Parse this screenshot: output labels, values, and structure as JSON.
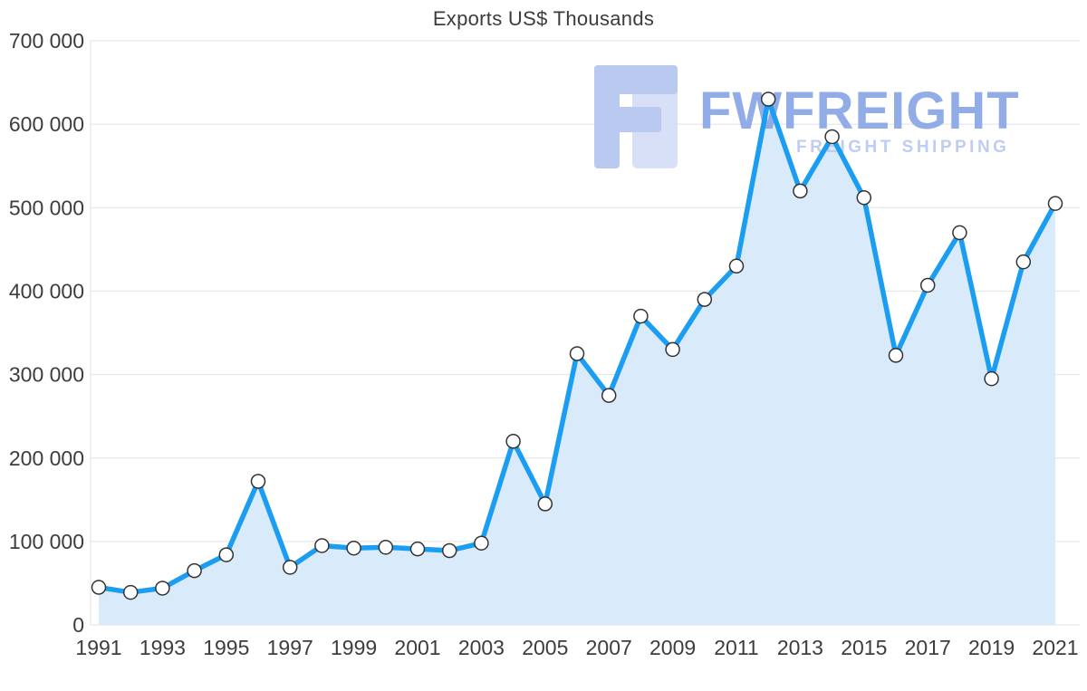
{
  "title": "Exports US$ Thousands",
  "watermark": {
    "brand": "FWFREIGHT",
    "subtitle": "FREIGHT SHIPPING",
    "brand_color": "#8ca8e6",
    "subtitle_color": "#bccbf2",
    "logo_color": "#b7c7f0",
    "logo_color_light": "#d5dff7"
  },
  "chart_data": {
    "type": "line",
    "title": "Exports US$ Thousands",
    "xlabel": "",
    "ylabel": "",
    "x": [
      1991,
      1992,
      1993,
      1994,
      1995,
      1996,
      1997,
      1998,
      1999,
      2000,
      2001,
      2002,
      2003,
      2004,
      2005,
      2006,
      2007,
      2008,
      2009,
      2010,
      2011,
      2012,
      2013,
      2014,
      2015,
      2016,
      2017,
      2018,
      2019,
      2020,
      2021
    ],
    "values": [
      45000,
      39000,
      44000,
      65000,
      84000,
      172000,
      69000,
      95000,
      92000,
      93000,
      91000,
      89000,
      98000,
      220000,
      145000,
      325000,
      275000,
      370000,
      330000,
      390000,
      430000,
      630000,
      520000,
      585000,
      512000,
      323000,
      407000,
      470000,
      295000,
      435000,
      505000
    ],
    "ylim": [
      0,
      700000
    ],
    "yticks": [
      0,
      100000,
      200000,
      300000,
      400000,
      500000,
      600000,
      700000
    ],
    "ytick_labels": [
      "0",
      "100 000",
      "200 000",
      "300 000",
      "400 000",
      "500 000",
      "600 000",
      "700 000"
    ],
    "xtick_labels": [
      "1991",
      "1993",
      "1995",
      "1997",
      "1999",
      "2001",
      "2003",
      "2005",
      "2007",
      "2009",
      "2011",
      "2013",
      "2015",
      "2017",
      "2019",
      "2021"
    ],
    "grid": true,
    "legend": "none",
    "line_color": "#1b9df2",
    "fill_color": "#d9eafb",
    "marker_fill": "#ffffff",
    "marker_stroke": "#333333",
    "grid_color": "#e2e2e2",
    "tick_color": "#3d3d3d"
  }
}
